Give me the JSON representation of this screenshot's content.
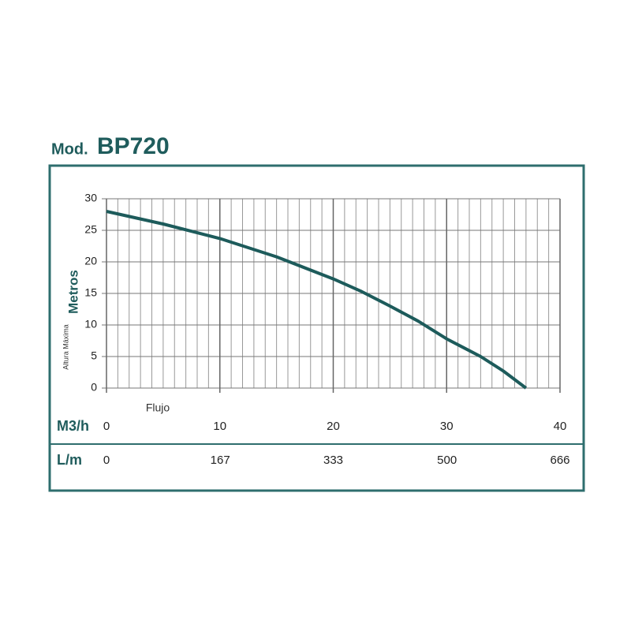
{
  "chart_data": {
    "type": "line",
    "title_prefix": "Mod.",
    "title": "BP720",
    "ylabel": "Metros",
    "ylabel_sub": "Altura Máxima",
    "xlabel": "Flujo",
    "x_unit": "M3/h",
    "x2_unit": "L/m",
    "x": [
      0,
      5,
      10,
      15,
      20,
      22.5,
      25,
      27.5,
      30,
      31.5,
      33,
      35,
      37
    ],
    "series": [
      {
        "name": "BP720",
        "color": "#1d5b5b",
        "values": [
          28,
          26,
          23.7,
          20.8,
          17.3,
          15.3,
          13,
          10.6,
          7.8,
          6.4,
          5,
          2.7,
          0
        ]
      }
    ],
    "xlim": [
      0,
      40
    ],
    "xticks": [
      0,
      10,
      20,
      30,
      40
    ],
    "x2lim": [
      0,
      666
    ],
    "x2ticks": [
      0,
      167,
      333,
      500,
      666
    ],
    "ylim": [
      0,
      30
    ],
    "yticks": [
      0,
      5,
      10,
      15,
      20,
      25,
      30
    ],
    "xgrid": [
      1,
      2,
      3,
      4,
      5,
      6,
      7,
      8,
      9,
      11,
      12,
      13,
      14,
      15,
      16,
      17,
      18,
      19,
      21,
      22,
      23,
      24,
      25,
      26,
      27,
      28,
      29,
      31,
      32,
      33,
      34,
      35,
      36,
      37,
      38,
      39
    ],
    "grid": true,
    "frame_color": "#2e6e6e"
  }
}
